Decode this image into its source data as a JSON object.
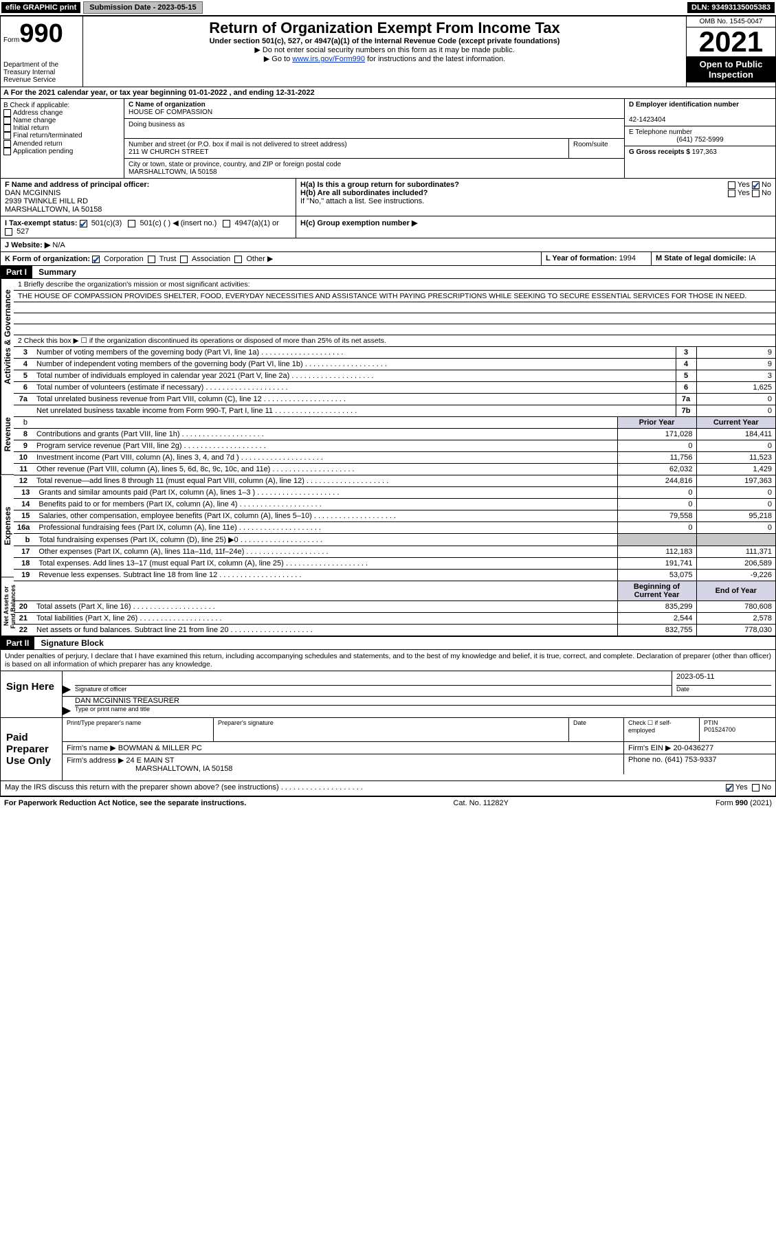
{
  "top": {
    "efile": "efile GRAPHIC print",
    "subdate_lbl": "Submission Date - 2023-05-15",
    "dln": "DLN: 93493135005383"
  },
  "header": {
    "form": "Form",
    "num": "990",
    "dept": "Department of the Treasury Internal Revenue Service",
    "title": "Return of Organization Exempt From Income Tax",
    "subtitle": "Under section 501(c), 527, or 4947(a)(1) of the Internal Revenue Code (except private foundations)",
    "warn": "▶ Do not enter social security numbers on this form as it may be made public.",
    "goto1": "▶ Go to ",
    "goto_link": "www.irs.gov/Form990",
    "goto2": " for instructions and the latest information.",
    "omb": "OMB No. 1545-0047",
    "year": "2021",
    "open": "Open to Public Inspection"
  },
  "a": {
    "text": "A For the 2021 calendar year, or tax year beginning 01-01-2022     , and ending 12-31-2022"
  },
  "b": {
    "lbl": "B Check if applicable:",
    "items": [
      "Address change",
      "Name change",
      "Initial return",
      "Final return/terminated",
      "Amended return",
      "Application pending"
    ]
  },
  "c": {
    "name_lbl": "C Name of organization",
    "name": "HOUSE OF COMPASSION",
    "dba_lbl": "Doing business as",
    "addr_lbl": "Number and street (or P.O. box if mail is not delivered to street address)",
    "room_lbl": "Room/suite",
    "addr": "211 W CHURCH STREET",
    "city_lbl": "City or town, state or province, country, and ZIP or foreign postal code",
    "city": "MARSHALLTOWN, IA  50158"
  },
  "d": {
    "lbl": "D Employer identification number",
    "val": "42-1423404"
  },
  "e": {
    "lbl": "E Telephone number",
    "val": "(641) 752-5999"
  },
  "g": {
    "lbl": "G Gross receipts $ ",
    "val": "197,363"
  },
  "f": {
    "lbl": "F  Name and address of principal officer:",
    "name": "DAN MCGINNIS",
    "addr1": "2939 TWINKLE HILL RD",
    "addr2": "MARSHALLTOWN, IA  50158"
  },
  "h": {
    "a": "H(a)  Is this a group return for subordinates?",
    "b": "H(b)  Are all subordinates included?",
    "note": "If \"No,\" attach a list. See instructions.",
    "c": "H(c)  Group exemption number ▶",
    "yes": "Yes",
    "no": "No"
  },
  "i": {
    "lbl": "I  Tax-exempt status:",
    "o1": "501(c)(3)",
    "o2": "501(c) (   ) ◀ (insert no.)",
    "o3": "4947(a)(1) or",
    "o4": "527"
  },
  "j": {
    "lbl": "J  Website: ▶",
    "val": "N/A"
  },
  "k": {
    "lbl": "K Form of organization:",
    "o1": "Corporation",
    "o2": "Trust",
    "o3": "Association",
    "o4": "Other ▶"
  },
  "l": {
    "lbl": "L Year of formation: ",
    "val": "1994"
  },
  "m": {
    "lbl": "M State of legal domicile: ",
    "val": "IA"
  },
  "part1": {
    "hdr": "Part I",
    "title": "Summary",
    "tabs": [
      "Activities & Governance",
      "Revenue",
      "Expenses",
      "Net Assets or Fund Balances"
    ],
    "l1": "1     Briefly describe the organization's mission or most significant activities:",
    "mission": "THE HOUSE OF COMPASSION PROVIDES SHELTER, FOOD, EVERYDAY NECESSITIES AND ASSISTANCE WITH PAYING PRESCRIPTIONS WHILE SEEKING TO SECURE ESSENTIAL SERVICES FOR THOSE IN NEED.",
    "l2": "2     Check this box ▶ ☐  if the organization discontinued its operations or disposed of more than 25% of its net assets.",
    "rows_single": [
      {
        "n": "3",
        "d": "Number of voting members of the governing body (Part VI, line 1a)",
        "b": "3",
        "v": "9"
      },
      {
        "n": "4",
        "d": "Number of independent voting members of the governing body (Part VI, line 1b)",
        "b": "4",
        "v": "9"
      },
      {
        "n": "5",
        "d": "Total number of individuals employed in calendar year 2021 (Part V, line 2a)",
        "b": "5",
        "v": "3"
      },
      {
        "n": "6",
        "d": "Total number of volunteers (estimate if necessary)",
        "b": "6",
        "v": "1,625"
      },
      {
        "n": "7a",
        "d": "Total unrelated business revenue from Part VIII, column (C), line 12",
        "b": "7a",
        "v": "0"
      },
      {
        "n": "",
        "d": "Net unrelated business taxable income from Form 990-T, Part I, line 11",
        "b": "7b",
        "v": "0"
      }
    ],
    "hdr_prior": "Prior Year",
    "hdr_curr": "Current Year",
    "rows_rev": [
      {
        "n": "8",
        "d": "Contributions and grants (Part VIII, line 1h)",
        "p": "171,028",
        "c": "184,411"
      },
      {
        "n": "9",
        "d": "Program service revenue (Part VIII, line 2g)",
        "p": "0",
        "c": "0"
      },
      {
        "n": "10",
        "d": "Investment income (Part VIII, column (A), lines 3, 4, and 7d )",
        "p": "11,756",
        "c": "11,523"
      },
      {
        "n": "11",
        "d": "Other revenue (Part VIII, column (A), lines 5, 6d, 8c, 9c, 10c, and 11e)",
        "p": "62,032",
        "c": "1,429"
      },
      {
        "n": "12",
        "d": "Total revenue—add lines 8 through 11 (must equal Part VIII, column (A), line 12)",
        "p": "244,816",
        "c": "197,363"
      }
    ],
    "rows_exp": [
      {
        "n": "13",
        "d": "Grants and similar amounts paid (Part IX, column (A), lines 1–3 )",
        "p": "0",
        "c": "0"
      },
      {
        "n": "14",
        "d": "Benefits paid to or for members (Part IX, column (A), line 4)",
        "p": "0",
        "c": "0"
      },
      {
        "n": "15",
        "d": "Salaries, other compensation, employee benefits (Part IX, column (A), lines 5–10)",
        "p": "79,558",
        "c": "95,218"
      },
      {
        "n": "16a",
        "d": "Professional fundraising fees (Part IX, column (A), line 11e)",
        "p": "0",
        "c": "0"
      },
      {
        "n": "b",
        "d": "Total fundraising expenses (Part IX, column (D), line 25) ▶0",
        "p": "GREY",
        "c": "GREY"
      },
      {
        "n": "17",
        "d": "Other expenses (Part IX, column (A), lines 11a–11d, 11f–24e)",
        "p": "112,183",
        "c": "111,371"
      },
      {
        "n": "18",
        "d": "Total expenses. Add lines 13–17 (must equal Part IX, column (A), line 25)",
        "p": "191,741",
        "c": "206,589"
      },
      {
        "n": "19",
        "d": "Revenue less expenses. Subtract line 18 from line 12",
        "p": "53,075",
        "c": "-9,226"
      }
    ],
    "hdr_beg": "Beginning of Current Year",
    "hdr_end": "End of Year",
    "rows_net": [
      {
        "n": "20",
        "d": "Total assets (Part X, line 16)",
        "p": "835,299",
        "c": "780,608"
      },
      {
        "n": "21",
        "d": "Total liabilities (Part X, line 26)",
        "p": "2,544",
        "c": "2,578"
      },
      {
        "n": "22",
        "d": "Net assets or fund balances. Subtract line 21 from line 20",
        "p": "832,755",
        "c": "778,030"
      }
    ]
  },
  "part2": {
    "hdr": "Part II",
    "title": "Signature Block",
    "penalty": "Under penalties of perjury, I declare that I have examined this return, including accompanying schedules and statements, and to the best of my knowledge and belief, it is true, correct, and complete. Declaration of preparer (other than officer) is based on all information of which preparer has any knowledge.",
    "sign": "Sign Here",
    "sig_of": "Signature of officer",
    "date": "Date",
    "sig_date": "2023-05-11",
    "name_title": "DAN MCGINNIS  TREASURER",
    "type_name": "Type or print name and title",
    "paid": "Paid Preparer Use Only",
    "pp_name": "Print/Type preparer's name",
    "pp_sig": "Preparer's signature",
    "pp_date": "Date",
    "pp_check": "Check ☐ if self-employed",
    "ptin_lbl": "PTIN",
    "ptin": "P01524700",
    "firm_name_lbl": "Firm's name    ▶ ",
    "firm_name": "BOWMAN & MILLER PC",
    "firm_ein_lbl": "Firm's EIN ▶ ",
    "firm_ein": "20-0436277",
    "firm_addr_lbl": "Firm's address ▶ ",
    "firm_addr1": "24 E MAIN ST",
    "firm_addr2": "MARSHALLTOWN, IA  50158",
    "phone_lbl": "Phone no. ",
    "phone": "(641) 753-9337",
    "discuss": "May the IRS discuss this return with the preparer shown above? (see instructions)"
  },
  "footer": {
    "pra": "For Paperwork Reduction Act Notice, see the separate instructions.",
    "cat": "Cat. No. 11282Y",
    "form": "Form 990 (2021)"
  }
}
